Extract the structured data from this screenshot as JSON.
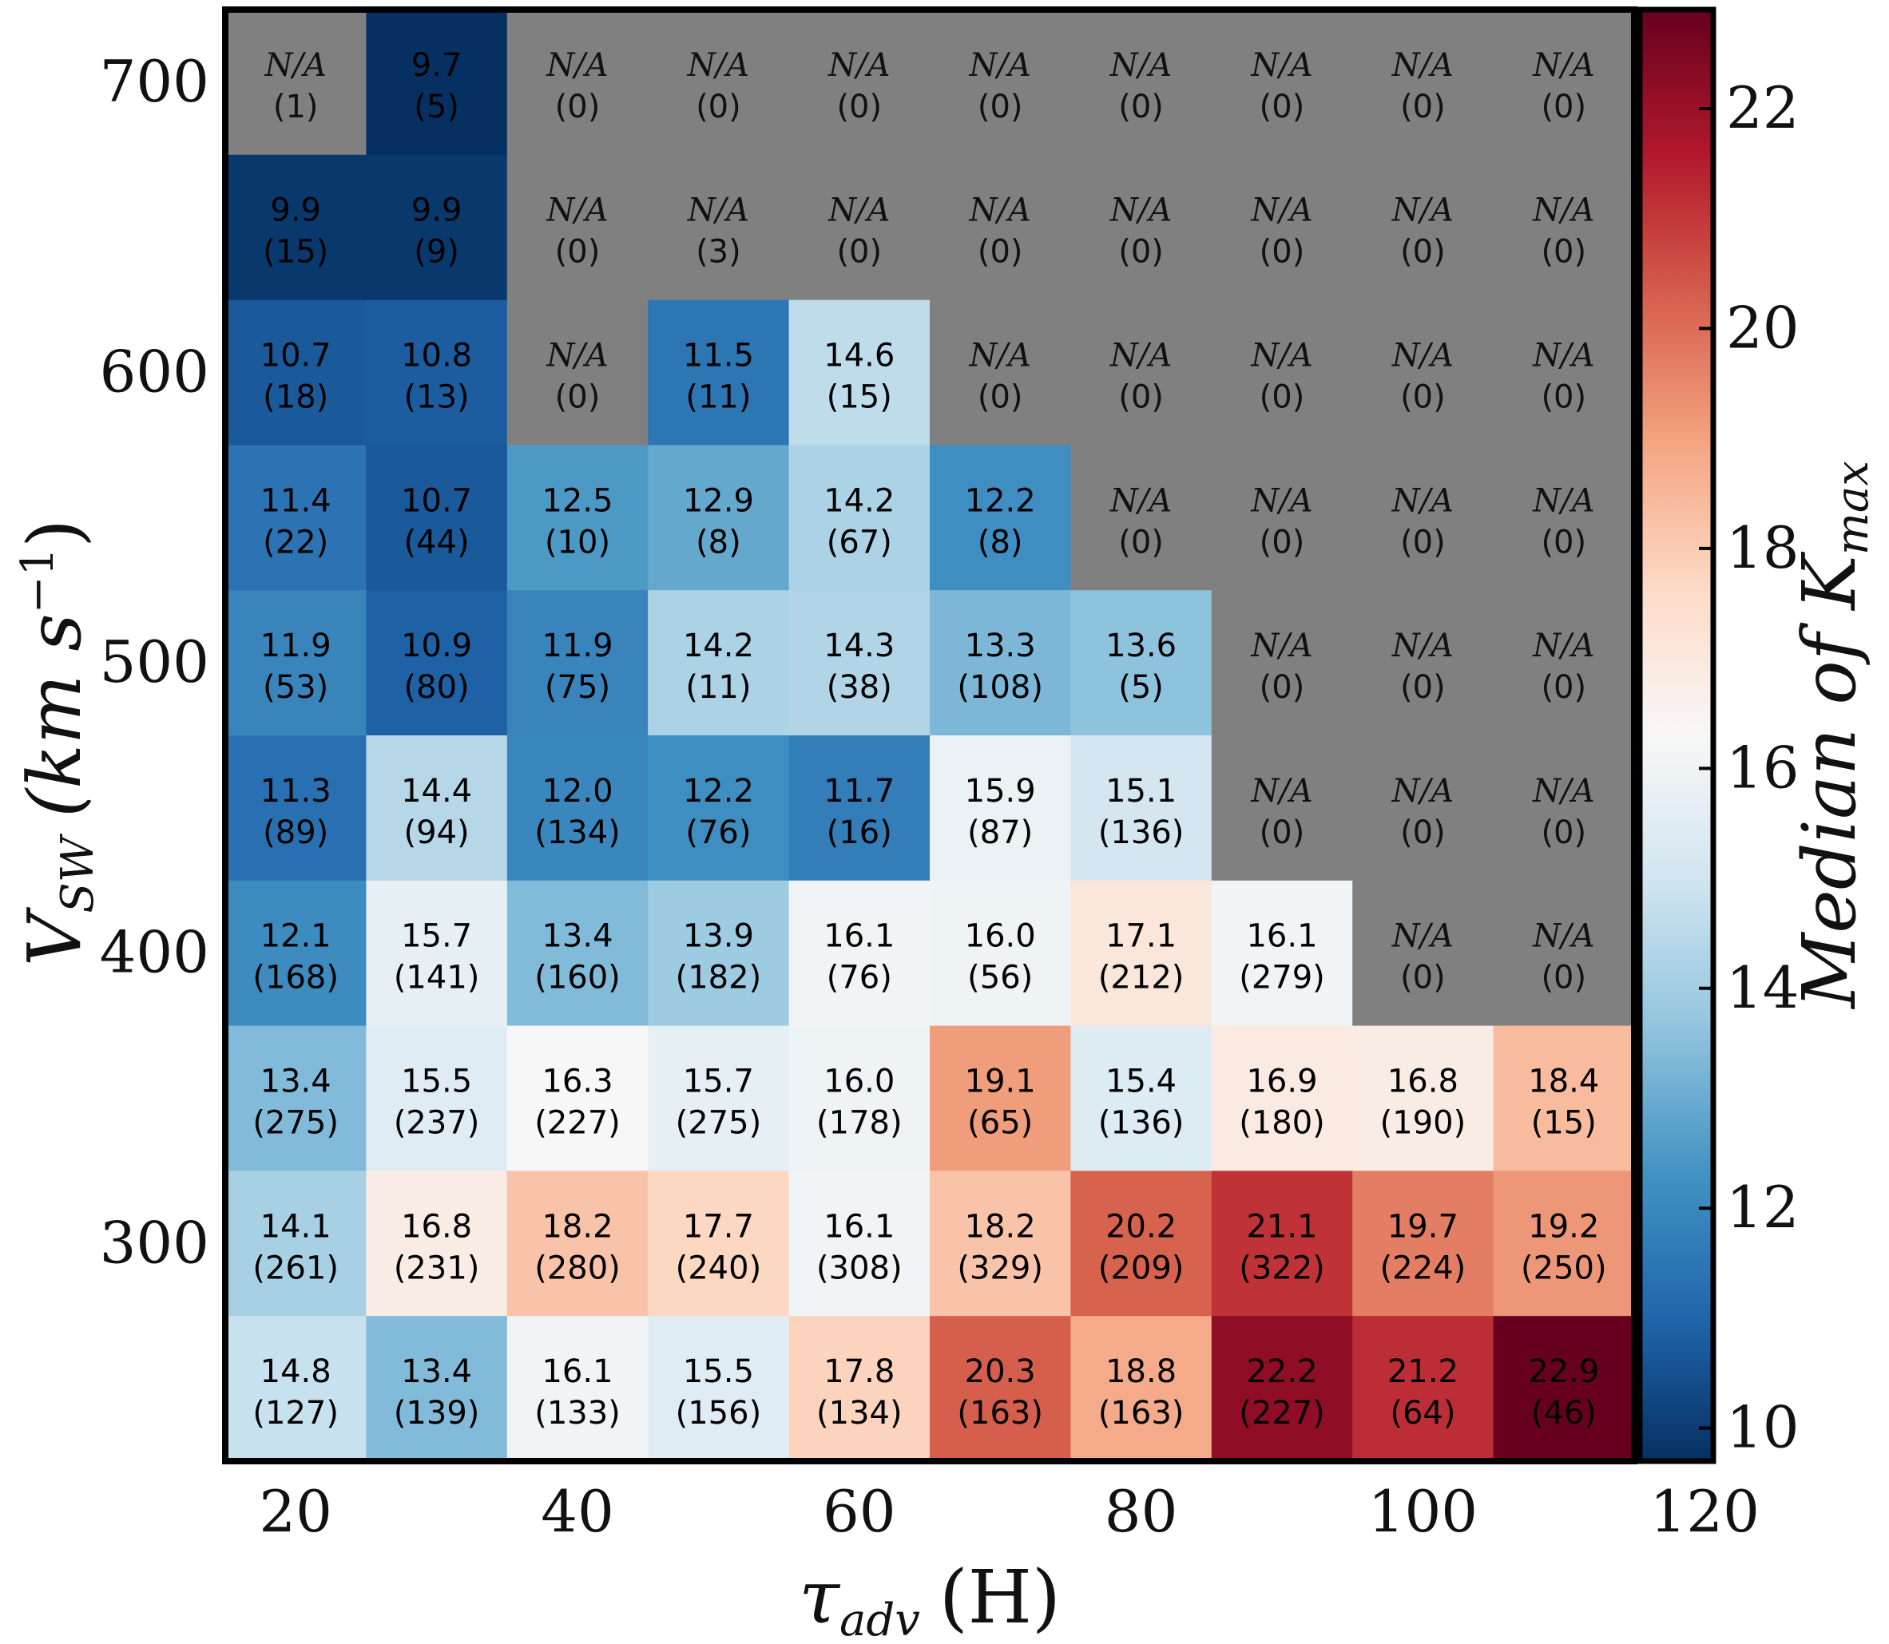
{
  "chart_data": {
    "type": "heatmap",
    "title": "",
    "xlabel": {
      "base": "τ",
      "sub": "adv",
      "unit": "(H)"
    },
    "ylabel": {
      "base": "V",
      "sub": "SW",
      "unit_open": "(km s",
      "unit_sup": "−1",
      "unit_close": ")"
    },
    "colorbar_label": {
      "prefix": "Median of ",
      "base": "K",
      "sub": "max"
    },
    "na_label": "N/A",
    "x_ticks": [
      "20",
      "40",
      "60",
      "80",
      "100",
      "120"
    ],
    "y_ticks": [
      "700",
      "600",
      "500",
      "400",
      "300"
    ],
    "colorbar_ticks": [
      "22",
      "20",
      "18",
      "16",
      "14",
      "12",
      "10"
    ],
    "colorbar_range": [
      9.7,
      22.9
    ],
    "colormap": [
      "#053061",
      "#2166ac",
      "#4393c3",
      "#92c5de",
      "#d1e5f0",
      "#f7f7f7",
      "#fddbc7",
      "#f4a582",
      "#d6604d",
      "#b2182b",
      "#67001f"
    ],
    "na_color": "#808080",
    "rows": [
      {
        "medians": [
          null,
          9.7,
          null,
          null,
          null,
          null,
          null,
          null,
          null,
          null
        ],
        "counts": [
          "(1)",
          "(5)",
          "(0)",
          "(0)",
          "(0)",
          "(0)",
          "(0)",
          "(0)",
          "(0)",
          "(0)"
        ]
      },
      {
        "medians": [
          9.9,
          9.9,
          null,
          null,
          null,
          null,
          null,
          null,
          null,
          null
        ],
        "counts": [
          "(15)",
          "(9)",
          "(0)",
          "(3)",
          "(0)",
          "(0)",
          "(0)",
          "(0)",
          "(0)",
          "(0)"
        ]
      },
      {
        "medians": [
          10.7,
          10.8,
          null,
          11.5,
          14.6,
          null,
          null,
          null,
          null,
          null
        ],
        "counts": [
          "(18)",
          "(13)",
          "(0)",
          "(11)",
          "(15)",
          "(0)",
          "(0)",
          "(0)",
          "(0)",
          "(0)"
        ]
      },
      {
        "medians": [
          11.4,
          10.7,
          12.5,
          12.9,
          14.2,
          12.2,
          null,
          null,
          null,
          null
        ],
        "counts": [
          "(22)",
          "(44)",
          "(10)",
          "(8)",
          "(67)",
          "(8)",
          "(0)",
          "(0)",
          "(0)",
          "(0)"
        ]
      },
      {
        "medians": [
          11.9,
          10.9,
          11.9,
          14.2,
          14.3,
          13.3,
          13.6,
          null,
          null,
          null
        ],
        "counts": [
          "(53)",
          "(80)",
          "(75)",
          "(11)",
          "(38)",
          "(108)",
          "(5)",
          "(0)",
          "(0)",
          "(0)"
        ]
      },
      {
        "medians": [
          11.3,
          14.4,
          12.0,
          12.2,
          11.7,
          15.9,
          15.1,
          null,
          null,
          null
        ],
        "counts": [
          "(89)",
          "(94)",
          "(134)",
          "(76)",
          "(16)",
          "(87)",
          "(136)",
          "(0)",
          "(0)",
          "(0)"
        ]
      },
      {
        "medians": [
          12.1,
          15.7,
          13.4,
          13.9,
          16.1,
          16.0,
          17.1,
          16.1,
          null,
          null
        ],
        "counts": [
          "(168)",
          "(141)",
          "(160)",
          "(182)",
          "(76)",
          "(56)",
          "(212)",
          "(279)",
          "(0)",
          "(0)"
        ]
      },
      {
        "medians": [
          13.4,
          15.5,
          16.3,
          15.7,
          16.0,
          19.1,
          15.4,
          16.9,
          16.8,
          18.4
        ],
        "counts": [
          "(275)",
          "(237)",
          "(227)",
          "(275)",
          "(178)",
          "(65)",
          "(136)",
          "(180)",
          "(190)",
          "(15)"
        ]
      },
      {
        "medians": [
          14.1,
          16.8,
          18.2,
          17.7,
          16.1,
          18.2,
          20.2,
          21.1,
          19.7,
          19.2
        ],
        "counts": [
          "(261)",
          "(231)",
          "(280)",
          "(240)",
          "(308)",
          "(329)",
          "(209)",
          "(322)",
          "(224)",
          "(250)"
        ]
      },
      {
        "medians": [
          14.8,
          13.4,
          16.1,
          15.5,
          17.8,
          20.3,
          18.8,
          22.2,
          21.2,
          22.9
        ],
        "counts": [
          "(127)",
          "(139)",
          "(133)",
          "(156)",
          "(134)",
          "(163)",
          "(163)",
          "(227)",
          "(64)",
          "(46)"
        ]
      }
    ]
  }
}
